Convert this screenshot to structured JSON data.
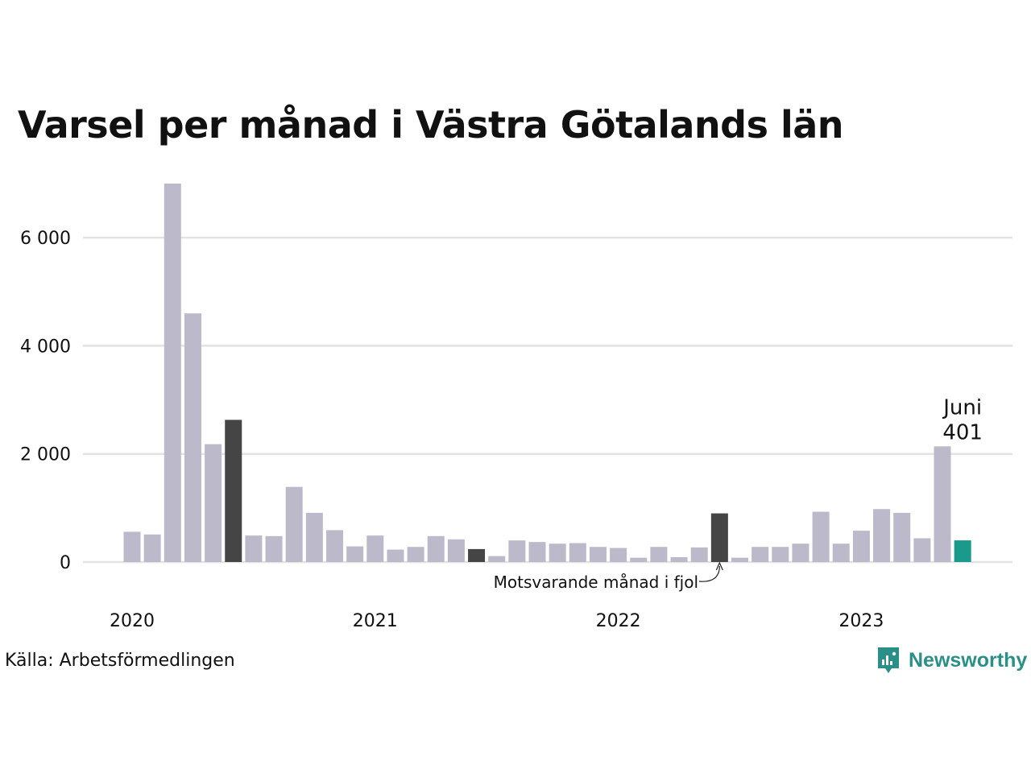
{
  "title": "Varsel per månad i Västra Götalands län",
  "source": "Källa: Arbetsförmedlingen",
  "brand": {
    "name": "Newsworthy",
    "icon": "newsworthy-logo-icon",
    "color": "#2a8f86"
  },
  "colors": {
    "bar": "#bcbaca",
    "highlight_last_year": "#454545",
    "current": "#1a9a8a",
    "grid": "#e3e3e3"
  },
  "chart_data": {
    "type": "bar",
    "title": "Varsel per månad i Västra Götalands län",
    "xlabel": "",
    "ylabel": "",
    "ylim": [
      0,
      7000
    ],
    "yticks": [
      0,
      2000,
      4000,
      6000
    ],
    "ytick_labels": [
      "0",
      "2 000",
      "4 000",
      "6 000"
    ],
    "year_labels": [
      {
        "label": "2020",
        "index": 0
      },
      {
        "label": "2021",
        "index": 12
      },
      {
        "label": "2022",
        "index": 24
      },
      {
        "label": "2023",
        "index": 36
      }
    ],
    "grid": true,
    "values": [
      560,
      510,
      7000,
      4600,
      2180,
      2630,
      490,
      480,
      1390,
      910,
      590,
      290,
      490,
      230,
      280,
      480,
      420,
      240,
      110,
      400,
      370,
      340,
      350,
      280,
      260,
      80,
      280,
      90,
      270,
      900,
      80,
      280,
      280,
      340,
      930,
      340,
      580,
      980,
      910,
      440,
      2140,
      401
    ],
    "highlight_indices": [
      5,
      17,
      29
    ],
    "current_index": 41,
    "current_label": {
      "month": "Juni",
      "value": "401"
    },
    "annotation": {
      "text": "Motsvarande månad i fjol",
      "index": 29
    }
  }
}
